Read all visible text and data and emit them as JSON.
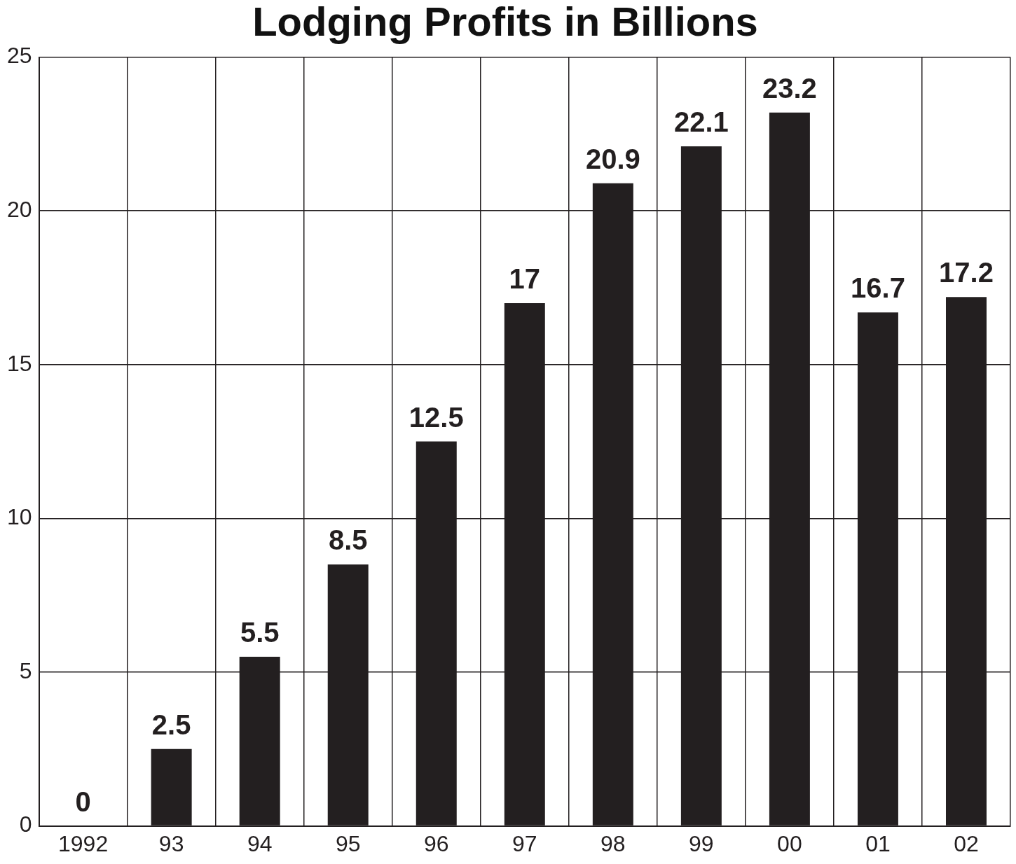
{
  "chart_data": {
    "type": "bar",
    "title": "Lodging Profits in Billions",
    "categories": [
      "1992",
      "93",
      "94",
      "95",
      "96",
      "97",
      "98",
      "99",
      "00",
      "01",
      "02"
    ],
    "values": [
      0,
      2.5,
      5.5,
      8.5,
      12.5,
      17,
      20.9,
      22.1,
      23.2,
      16.7,
      17.2
    ],
    "color": "#231f20",
    "ylim": [
      0,
      25
    ],
    "yticks": [
      0,
      5,
      10,
      15,
      20,
      25
    ],
    "grid": true,
    "data_labels": true
  }
}
